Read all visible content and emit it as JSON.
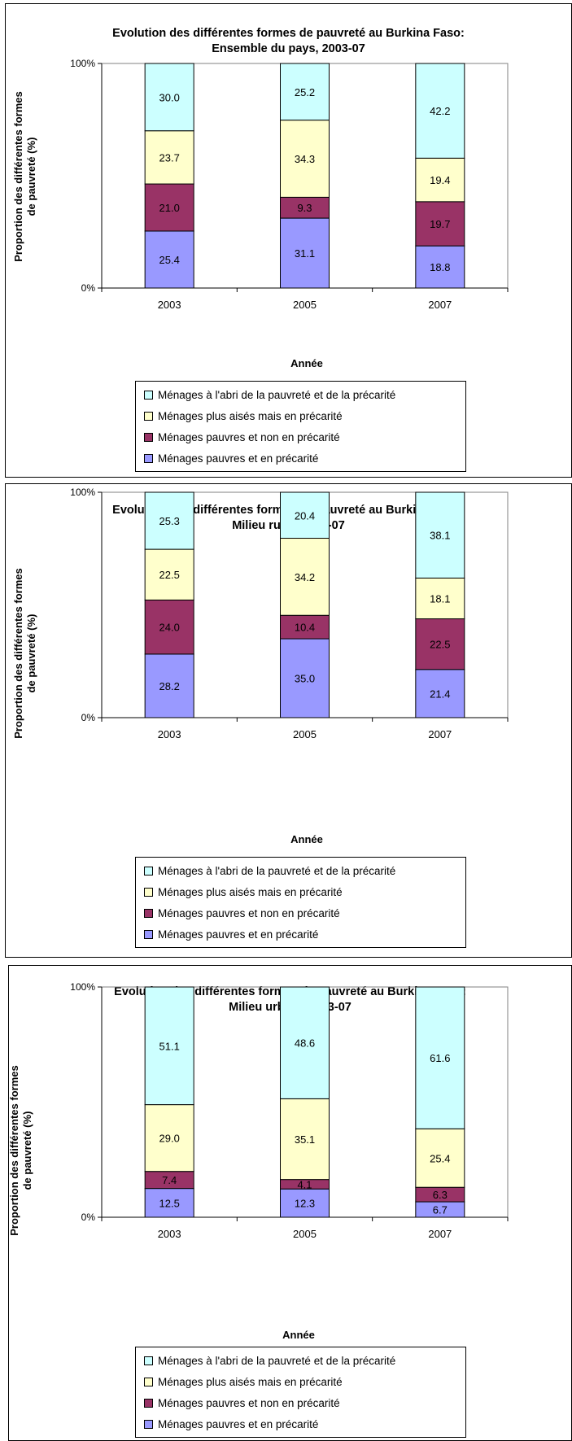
{
  "colors": {
    "abri": "#ccffff",
    "aises": "#ffffcc",
    "pauvres_non": "#993366",
    "pauvres_prec": "#9999ff"
  },
  "legend_labels": [
    "Ménages à l'abri de la pauvreté et de la précarité",
    "Ménages plus aisés mais en précarité",
    "Ménages pauvres et non en précarité",
    "Ménages pauvres et en précarité"
  ],
  "chart_data": [
    {
      "type": "bar",
      "stacked": "percent",
      "title_line1": "Evolution des différentes formes de pauvreté au Burkina Faso:",
      "title_line2": "Ensemble du pays, 2003-07",
      "ylabel_line1": "Proportion des différentes formes",
      "ylabel_line2": "de pauvreté (%)",
      "xlabel": "Année",
      "ytick_top": "100%",
      "ytick_bottom": "0%",
      "ylim": [
        0,
        100
      ],
      "categories": [
        "2003",
        "2005",
        "2007"
      ],
      "series": [
        {
          "name": "Ménages pauvres et en précarité",
          "values": [
            25.4,
            31.1,
            18.8
          ],
          "labels": [
            "25.4",
            "31.1",
            "18.8"
          ]
        },
        {
          "name": "Ménages pauvres et non en précarité",
          "values": [
            21.0,
            9.3,
            19.7
          ],
          "labels": [
            "21.0",
            "9.3",
            "19.7"
          ]
        },
        {
          "name": "Ménages plus aisés mais en précarité",
          "values": [
            23.7,
            34.3,
            19.4
          ],
          "labels": [
            "23.7",
            "34.3",
            "19.4"
          ]
        },
        {
          "name": "Ménages à l'abri de la pauvreté et de la précarité",
          "values": [
            30.0,
            25.2,
            42.2
          ],
          "labels": [
            "30.0",
            "25.2",
            "42.2"
          ]
        }
      ]
    },
    {
      "type": "bar",
      "stacked": "percent",
      "title_line1": "Evolution des différentes formes de pauvreté au Burkina Faso:",
      "title_line2": "Milieu rural, 2003-07",
      "ylabel_line1": "Proportion des différentes formes",
      "ylabel_line2": "de pauvreté (%)",
      "xlabel": "Année",
      "ytick_top": "100%",
      "ytick_bottom": "0%",
      "ylim": [
        0,
        100
      ],
      "categories": [
        "2003",
        "2005",
        "2007"
      ],
      "series": [
        {
          "name": "Ménages pauvres et en précarité",
          "values": [
            28.2,
            35.0,
            21.4
          ],
          "labels": [
            "28.2",
            "35.0",
            "21.4"
          ]
        },
        {
          "name": "Ménages pauvres et non en précarité",
          "values": [
            24.0,
            10.4,
            22.5
          ],
          "labels": [
            "24.0",
            "10.4",
            "22.5"
          ]
        },
        {
          "name": "Ménages plus aisés mais en précarité",
          "values": [
            22.5,
            34.2,
            18.1
          ],
          "labels": [
            "22.5",
            "34.2",
            "18.1"
          ]
        },
        {
          "name": "Ménages à l'abri de la pauvreté et de la précarité",
          "values": [
            25.3,
            20.4,
            38.1
          ],
          "labels": [
            "25.3",
            "20.4",
            "38.1"
          ]
        }
      ]
    },
    {
      "type": "bar",
      "stacked": "percent",
      "title_line1": "Evolution des différentes formes de pauvreté au Burkina Faso:",
      "title_line2": "Milieu urbain, 2003-07",
      "ylabel_line1": "Proportion des différentes formes",
      "ylabel_line2": "de pauvreté (%)",
      "xlabel": "Année",
      "ytick_top": "100%",
      "ytick_bottom": "0%",
      "ylim": [
        0,
        100
      ],
      "categories": [
        "2003",
        "2005",
        "2007"
      ],
      "series": [
        {
          "name": "Ménages pauvres et en précarité",
          "values": [
            12.5,
            12.3,
            6.7
          ],
          "labels": [
            "12.5",
            "12.3",
            "6.7"
          ]
        },
        {
          "name": "Ménages pauvres et non en précarité",
          "values": [
            7.4,
            4.1,
            6.3
          ],
          "labels": [
            "7.4",
            "4.1",
            "6.3"
          ]
        },
        {
          "name": "Ménages plus aisés mais en précarité",
          "values": [
            29.0,
            35.1,
            25.4
          ],
          "labels": [
            "29.0",
            "35.1",
            "25.4"
          ]
        },
        {
          "name": "Ménages à l'abri de la pauvreté et de la précarité",
          "values": [
            51.1,
            48.6,
            61.6
          ],
          "labels": [
            "51.1",
            "48.6",
            "61.6"
          ]
        }
      ]
    }
  ]
}
